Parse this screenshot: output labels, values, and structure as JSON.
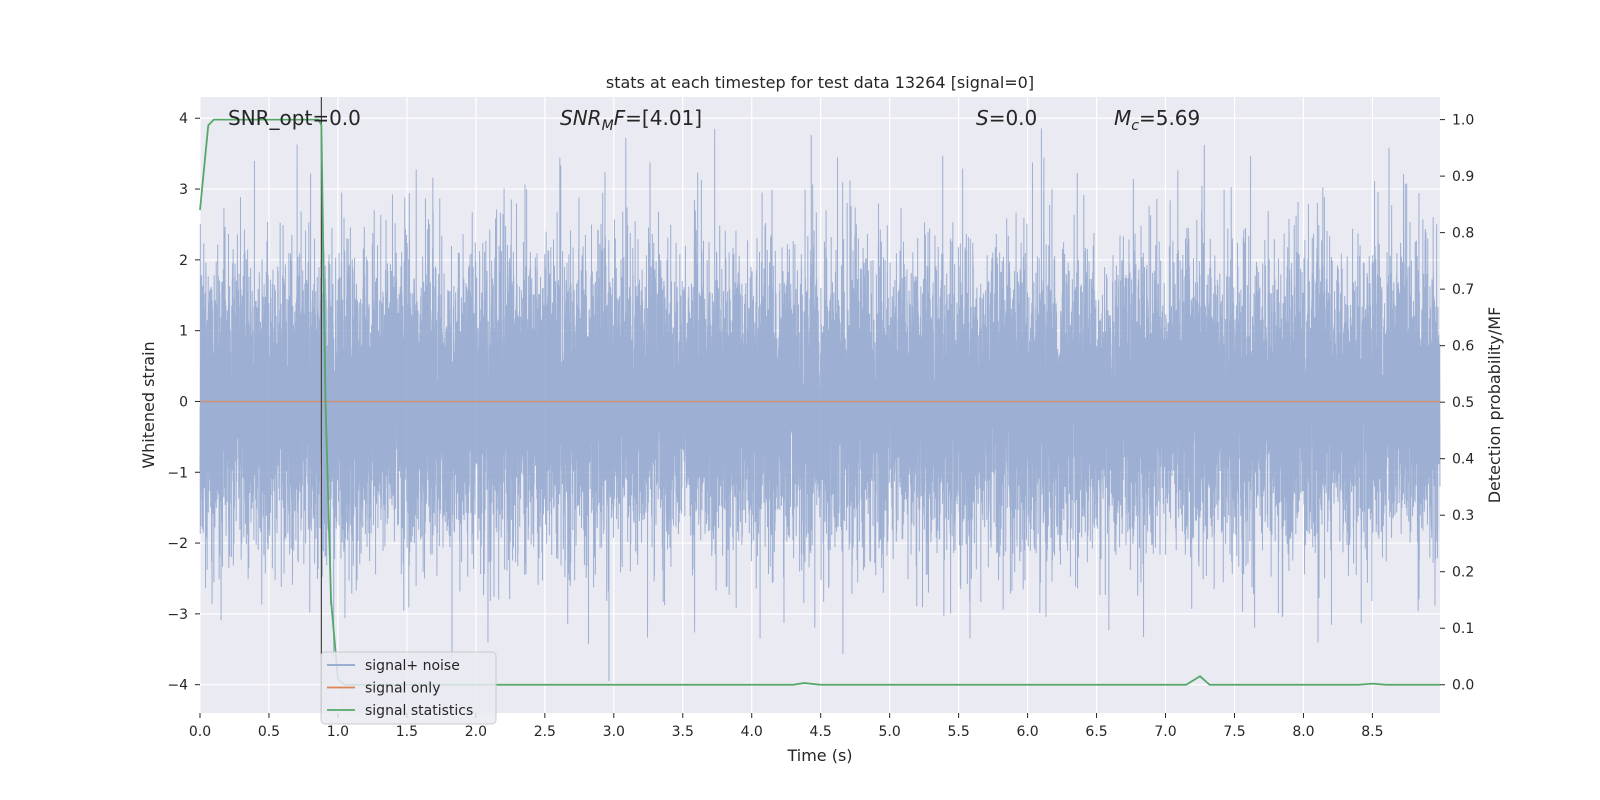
{
  "chart_data": {
    "type": "line",
    "title": "stats at each timestep for test data 13264 [signal=0]",
    "xlabel": "Time (s)",
    "ylabel_left": "Whitened strain",
    "ylabel_right": "Detection probability/MF",
    "xlim": [
      0,
      8.99
    ],
    "ylim_left": [
      -4.4,
      4.3
    ],
    "ylim_right": [
      -0.05,
      1.04
    ],
    "xticks": [
      0.0,
      0.5,
      1.0,
      1.5,
      2.0,
      2.5,
      3.0,
      3.5,
      4.0,
      4.5,
      5.0,
      5.5,
      6.0,
      6.5,
      7.0,
      7.5,
      8.0,
      8.5
    ],
    "xtick_labels": [
      "0.0",
      "0.5",
      "1.0",
      "1.5",
      "2.0",
      "2.5",
      "3.0",
      "3.5",
      "4.0",
      "4.5",
      "5.0",
      "5.5",
      "6.0",
      "6.5",
      "7.0",
      "7.5",
      "8.0",
      "8.5"
    ],
    "yticks_left": [
      -4,
      -3,
      -2,
      -1,
      0,
      1,
      2,
      3,
      4
    ],
    "ytick_labels_left": [
      "−4",
      "−3",
      "−2",
      "−1",
      "0",
      "1",
      "2",
      "3",
      "4"
    ],
    "yticks_right": [
      0.0,
      0.1,
      0.2,
      0.3,
      0.4,
      0.5,
      0.6,
      0.7,
      0.8,
      0.9,
      1.0
    ],
    "ytick_labels_right": [
      "0.0",
      "0.1",
      "0.2",
      "0.3",
      "0.4",
      "0.5",
      "0.6",
      "0.7",
      "0.8",
      "0.9",
      "1.0"
    ],
    "grid": true,
    "legend_position": "lower-left",
    "vline_x": 0.88,
    "series": [
      {
        "name": "signal+ noise",
        "color": "#8fa5cc",
        "kind": "noise",
        "axis": "left",
        "sample_rate": 2048
      },
      {
        "name": "signal only",
        "color": "#dd8452",
        "kind": "constant",
        "axis": "left",
        "value": 0
      },
      {
        "name": "signal statistics",
        "color": "#55a868",
        "kind": "line",
        "axis": "right",
        "x": [
          0.0,
          0.06,
          0.1,
          0.2,
          0.4,
          0.6,
          0.86,
          0.88,
          0.91,
          0.95,
          1.0,
          1.05,
          1.1,
          1.5,
          2.0,
          3.0,
          4.0,
          4.3,
          4.38,
          4.5,
          5.0,
          6.0,
          7.0,
          7.15,
          7.25,
          7.32,
          7.5,
          8.0,
          8.4,
          8.5,
          8.6,
          8.99
        ],
        "y": [
          0.84,
          0.99,
          1.0,
          1.0,
          1.0,
          1.0,
          1.0,
          0.99,
          0.5,
          0.15,
          0.01,
          0.0,
          0.0,
          0.0,
          0.0,
          0.0,
          0.0,
          0.0,
          0.003,
          0.0,
          0.0,
          0.0,
          0.0,
          0.0,
          0.015,
          0.0,
          0.0,
          0.0,
          0.0,
          0.002,
          0.0,
          0.0
        ]
      }
    ],
    "annotations": [
      {
        "text": "SNR_opt=0.0",
        "math": false
      },
      {
        "base": "SNR",
        "sub": "M",
        "rest": "F=[4.01]",
        "italic_base": true
      },
      {
        "base": "S",
        "sub": "",
        "rest": "=0.0",
        "italic_base": true
      },
      {
        "base": "M",
        "sub": "c",
        "rest": "=5.69",
        "italic_base": true
      }
    ]
  }
}
